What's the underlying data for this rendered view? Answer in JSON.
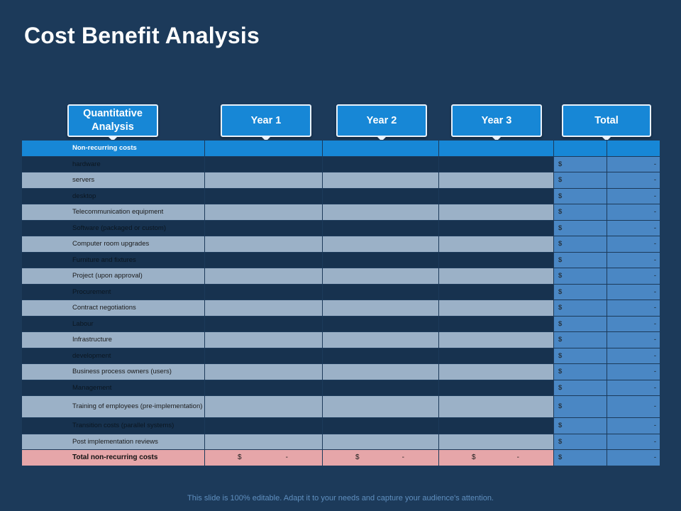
{
  "title": "Cost Benefit Analysis",
  "headers": {
    "analysis": "Quantitative Analysis",
    "year1": "Year 1",
    "year2": "Year 2",
    "year3": "Year 3",
    "total": "Total"
  },
  "section": "Non-recurring costs",
  "rows": [
    "hardware",
    "servers",
    "desktop",
    "Telecommunication equipment",
    "Software (packaged or custom)",
    "Computer room upgrades",
    "Furniture and fixtures",
    "Project (upon approval)",
    "Procurement",
    "Contract negotiations",
    "Labour",
    "Infrastructure",
    "development",
    "Business process owners (users)",
    "Management",
    "Training of employees (pre-implementation)",
    "Transition costs (parallel systems)",
    "Post implementation reviews"
  ],
  "currency": "$",
  "dash": "-",
  "total_row_label": "Total non-recurring costs",
  "footer": "This slide is 100% editable. Adapt it to your needs and capture your audience's attention.",
  "colors": {
    "background": "#1c3a5a",
    "accent": "#1787d6",
    "total_column": "#4a87c4",
    "total_row": "#e6a6a9"
  }
}
